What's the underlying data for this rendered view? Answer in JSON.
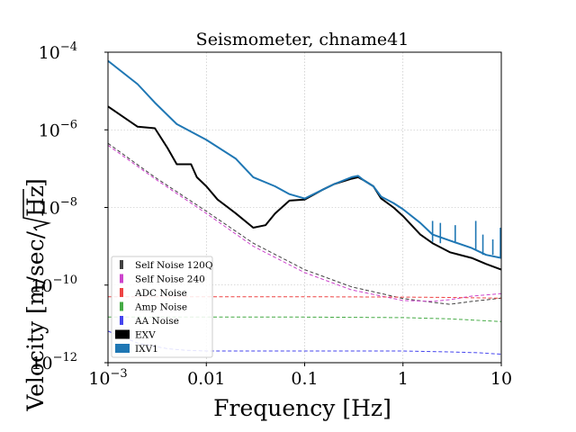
{
  "chart_data": {
    "type": "line",
    "title": "Seismometer, chname41",
    "xlabel": "Frequency [Hz]",
    "ylabel_prefix": "Velocity [m/sec/",
    "ylabel_radicand": "Hz",
    "ylabel_suffix": "]",
    "xscale": "log",
    "yscale": "log",
    "xlim": [
      0.001,
      10
    ],
    "ylim": [
      1e-12,
      0.0001
    ],
    "grid": true,
    "legend_position": "lower-left",
    "xticks": [
      {
        "value": 0.001,
        "base": "10",
        "exp": "−3",
        "label": ""
      },
      {
        "value": 0.01,
        "label": "0.01"
      },
      {
        "value": 0.1,
        "label": "0.1"
      },
      {
        "value": 1,
        "label": "1"
      },
      {
        "value": 10,
        "label": "10"
      }
    ],
    "yticks": [
      {
        "value": 1e-12,
        "base": "10",
        "exp": "−12"
      },
      {
        "value": 1e-10,
        "base": "10",
        "exp": "−10"
      },
      {
        "value": 1e-08,
        "base": "10",
        "exp": "−8"
      },
      {
        "value": 1e-06,
        "base": "10",
        "exp": "−6"
      },
      {
        "value": 0.0001,
        "base": "10",
        "exp": "−4"
      }
    ],
    "series": [
      {
        "name": "Self Noise 120Q",
        "color": "#404040",
        "style": "dashed",
        "x": [
          0.001,
          0.003,
          0.01,
          0.03,
          0.1,
          0.3,
          1,
          2,
          3,
          5,
          10
        ],
        "y": [
          4.5e-07,
          6e-08,
          8e-09,
          1.2e-09,
          2.5e-10,
          9e-11,
          4.5e-11,
          3.6e-11,
          3.2e-11,
          3.8e-11,
          4.6e-11
        ]
      },
      {
        "name": "Self Noise 240",
        "color": "#cc44cc",
        "style": "dashed",
        "x": [
          0.001,
          0.003,
          0.01,
          0.03,
          0.1,
          0.3,
          1,
          2,
          3,
          5,
          10
        ],
        "y": [
          4e-07,
          5.5e-08,
          7e-09,
          1e-09,
          2.1e-10,
          7.5e-11,
          4e-11,
          3.8e-11,
          4.2e-11,
          5.2e-11,
          6e-11
        ]
      },
      {
        "name": "ADC Noise",
        "color": "#ee4444",
        "style": "dashed",
        "x": [
          0.001,
          0.01,
          0.1,
          1,
          3,
          10
        ],
        "y": [
          5e-11,
          5e-11,
          5e-11,
          4.9e-11,
          4.8e-11,
          4.6e-11
        ]
      },
      {
        "name": "Amp Noise",
        "color": "#44aa44",
        "style": "dashed",
        "x": [
          0.001,
          0.01,
          0.1,
          1,
          3,
          10
        ],
        "y": [
          1.5e-11,
          1.5e-11,
          1.5e-11,
          1.45e-11,
          1.35e-11,
          1.15e-11
        ]
      },
      {
        "name": "AA Noise",
        "color": "#4444ee",
        "style": "dashed",
        "x": [
          0.001,
          0.002,
          0.004,
          0.006,
          0.01,
          0.1,
          1,
          3,
          6,
          10
        ],
        "y": [
          6.5e-12,
          3.2e-12,
          2.3e-12,
          2.1e-12,
          2e-12,
          2e-12,
          2e-12,
          1.9e-12,
          1.8e-12,
          1.65e-12
        ]
      },
      {
        "name": "EXV",
        "color": "#000000",
        "style": "solid",
        "x": [
          0.001,
          0.002,
          0.003,
          0.004,
          0.005,
          0.007,
          0.008,
          0.01,
          0.013,
          0.02,
          0.03,
          0.04,
          0.05,
          0.07,
          0.1,
          0.15,
          0.2,
          0.3,
          0.35,
          0.4,
          0.5,
          0.6,
          0.8,
          1,
          1.5,
          2,
          3,
          5,
          7,
          10
        ],
        "y": [
          4e-06,
          1.2e-06,
          1.1e-06,
          3.5e-07,
          1.3e-07,
          1.3e-07,
          6e-08,
          3.5e-08,
          1.6e-08,
          7e-09,
          3e-09,
          3.5e-09,
          7e-09,
          1.5e-08,
          1.6e-08,
          2.8e-08,
          4e-08,
          5.5e-08,
          6e-08,
          5e-08,
          3.5e-08,
          1.7e-08,
          1e-08,
          6e-09,
          2e-09,
          1.2e-09,
          7e-10,
          5e-10,
          3.5e-10,
          2.5e-10
        ]
      },
      {
        "name": "IXV1",
        "color": "#1f77b4",
        "style": "solid",
        "x": [
          0.001,
          0.002,
          0.003,
          0.005,
          0.01,
          0.02,
          0.03,
          0.05,
          0.07,
          0.1,
          0.15,
          0.2,
          0.3,
          0.35,
          0.4,
          0.5,
          0.6,
          0.8,
          1,
          1.5,
          2,
          3,
          5,
          7,
          10
        ],
        "y": [
          6e-05,
          1.5e-05,
          5e-06,
          1.4e-06,
          5.5e-07,
          1.8e-07,
          6e-08,
          3.5e-08,
          2.2e-08,
          1.7e-08,
          2.8e-08,
          4e-08,
          6e-08,
          6.5e-08,
          5e-08,
          3.5e-08,
          1.9e-08,
          1.3e-08,
          9e-09,
          4e-09,
          2e-09,
          1.4e-09,
          9e-10,
          6e-10,
          5e-10
        ]
      }
    ],
    "spikes": [
      {
        "series": "IXV1",
        "x": 2.0,
        "from": 1.3e-09,
        "to": 4.5e-09
      },
      {
        "series": "IXV1",
        "x": 2.4,
        "from": 1.2e-09,
        "to": 4e-09
      },
      {
        "series": "IXV1",
        "x": 3.4,
        "from": 1.2e-09,
        "to": 3.5e-09
      },
      {
        "series": "IXV1",
        "x": 5.5,
        "from": 8e-10,
        "to": 4.5e-09
      },
      {
        "series": "IXV1",
        "x": 6.5,
        "from": 6e-10,
        "to": 2e-09
      },
      {
        "series": "IXV1",
        "x": 8.2,
        "from": 6e-10,
        "to": 1.5e-09
      },
      {
        "series": "IXV1",
        "x": 9.8,
        "from": 5e-10,
        "to": 3e-09
      }
    ]
  }
}
